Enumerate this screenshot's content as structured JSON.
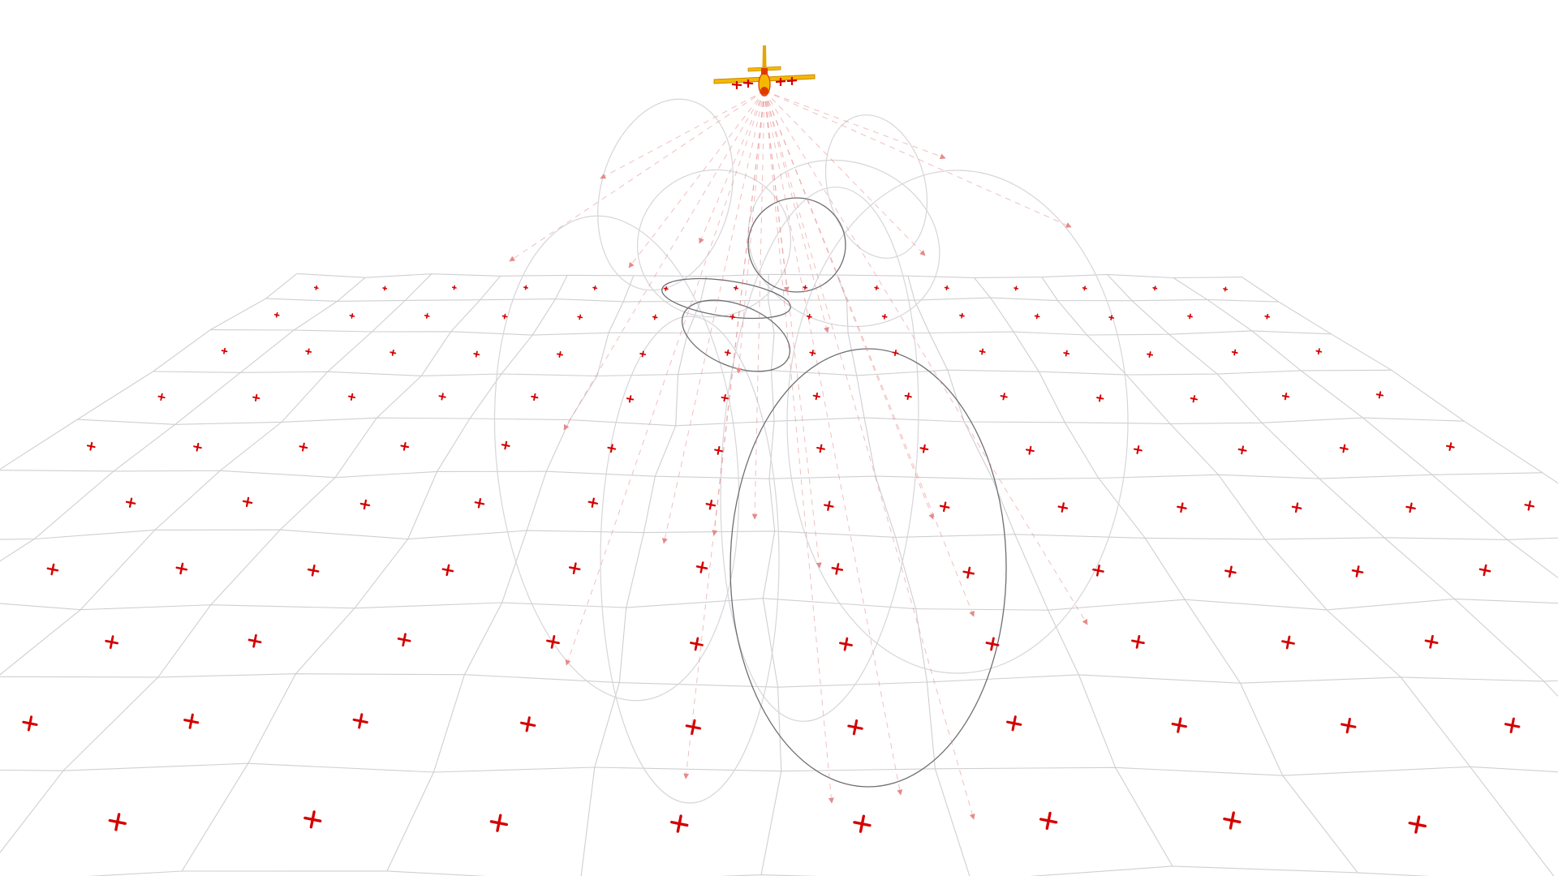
{
  "scene": {
    "aircraft_icon": "aircraft-icon",
    "colors": {
      "background": "#ffffff",
      "grid": "#cfcfd3",
      "target": "#d40000",
      "ray": "#e58a8a",
      "ellipse_light": "#d6d6da",
      "ellipse_dark": "#6e6e72",
      "aircraft_body": "#f5b800",
      "aircraft_accent": "#e03a00"
    }
  }
}
